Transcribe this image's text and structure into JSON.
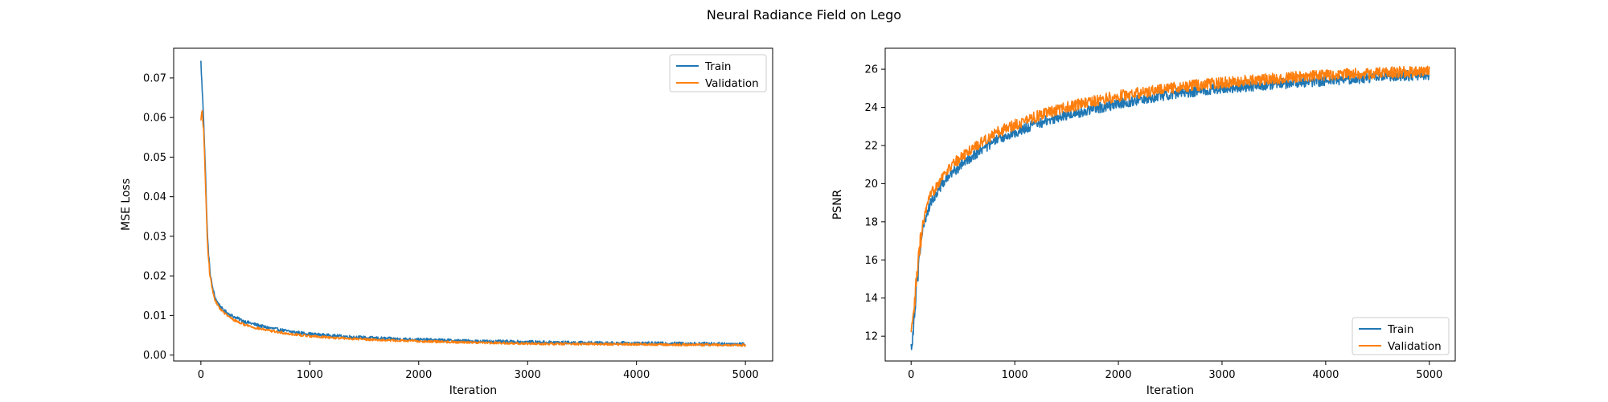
{
  "figure": {
    "title": "Neural Radiance Field on Lego"
  },
  "chart_data": [
    {
      "type": "line",
      "xlabel": "Iteration",
      "ylabel": "MSE Loss",
      "xlim": [
        -250,
        5250
      ],
      "ylim": [
        -0.0015,
        0.0775
      ],
      "xticks": [
        0,
        1000,
        2000,
        3000,
        4000,
        5000
      ],
      "yticks": [
        0.0,
        0.01,
        0.02,
        0.03,
        0.04,
        0.05,
        0.06,
        0.07
      ],
      "ytick_labels": [
        "0.00",
        "0.01",
        "0.02",
        "0.03",
        "0.04",
        "0.05",
        "0.06",
        "0.07"
      ],
      "legend_position": "upper-right",
      "series": [
        {
          "name": "Train",
          "color": "#1f77b4",
          "x": [
            0,
            10,
            25,
            40,
            60,
            80,
            100,
            130,
            160,
            200,
            250,
            300,
            400,
            500,
            600,
            800,
            1000,
            1250,
            1500,
            1750,
            2000,
            2500,
            3000,
            3500,
            4000,
            4500,
            5000
          ],
          "y": [
            0.074,
            0.068,
            0.06,
            0.048,
            0.03,
            0.022,
            0.018,
            0.0145,
            0.013,
            0.0115,
            0.0105,
            0.0097,
            0.0085,
            0.0077,
            0.007,
            0.006,
            0.0053,
            0.0048,
            0.0044,
            0.0041,
            0.0039,
            0.0035,
            0.0033,
            0.0031,
            0.003,
            0.0029,
            0.0028
          ],
          "noise": 0.0004
        },
        {
          "name": "Validation",
          "color": "#ff7f0e",
          "x": [
            0,
            10,
            25,
            40,
            60,
            80,
            100,
            130,
            160,
            200,
            250,
            300,
            400,
            500,
            600,
            800,
            1000,
            1250,
            1500,
            1750,
            2000,
            2500,
            3000,
            3500,
            4000,
            4500,
            5000
          ],
          "y": [
            0.059,
            0.062,
            0.057,
            0.045,
            0.028,
            0.021,
            0.017,
            0.0138,
            0.0123,
            0.011,
            0.0098,
            0.0089,
            0.0077,
            0.0069,
            0.0063,
            0.0054,
            0.0048,
            0.0043,
            0.004,
            0.0037,
            0.0035,
            0.0032,
            0.0029,
            0.0028,
            0.0027,
            0.0026,
            0.0025
          ],
          "noise": 0.0003
        }
      ]
    },
    {
      "type": "line",
      "xlabel": "Iteration",
      "ylabel": "PSNR",
      "xlim": [
        -250,
        5250
      ],
      "ylim": [
        10.7,
        27.1
      ],
      "xticks": [
        0,
        1000,
        2000,
        3000,
        4000,
        5000
      ],
      "yticks": [
        12,
        14,
        16,
        18,
        20,
        22,
        24,
        26
      ],
      "ytick_labels": [
        "12",
        "14",
        "16",
        "18",
        "20",
        "22",
        "24",
        "26"
      ],
      "legend_position": "lower-right",
      "series": [
        {
          "name": "Train",
          "color": "#1f77b4",
          "x": [
            0,
            20,
            50,
            80,
            120,
            160,
            200,
            300,
            400,
            600,
            800,
            1000,
            1250,
            1500,
            2000,
            2500,
            3000,
            3500,
            4000,
            4500,
            5000
          ],
          "y": [
            11.3,
            12.5,
            14.5,
            16.2,
            17.8,
            18.6,
            19.1,
            20.0,
            20.6,
            21.5,
            22.2,
            22.7,
            23.2,
            23.6,
            24.2,
            24.7,
            25.0,
            25.2,
            25.4,
            25.6,
            25.7
          ],
          "noise": 0.28
        },
        {
          "name": "Validation",
          "color": "#ff7f0e",
          "x": [
            0,
            20,
            50,
            80,
            120,
            160,
            200,
            300,
            400,
            600,
            800,
            1000,
            1250,
            1500,
            2000,
            2500,
            3000,
            3500,
            4000,
            4500,
            5000
          ],
          "y": [
            11.9,
            12.8,
            14.8,
            16.5,
            18.1,
            18.9,
            19.5,
            20.4,
            21.0,
            21.9,
            22.6,
            23.1,
            23.6,
            24.0,
            24.6,
            25.0,
            25.3,
            25.5,
            25.7,
            25.8,
            25.9
          ],
          "noise": 0.3
        }
      ]
    }
  ]
}
